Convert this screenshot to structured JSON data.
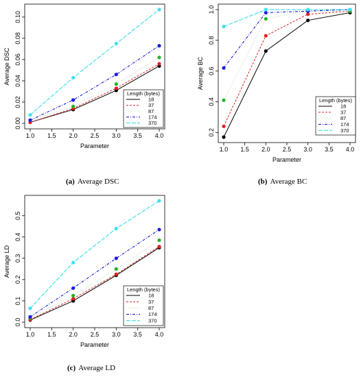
{
  "legend": {
    "title": "Length (bytes)",
    "series_names": [
      "18",
      "37",
      "87",
      "174",
      "370"
    ],
    "line_colors": [
      "#000000",
      "#e02020",
      "#bfe0b0",
      "#0000d0",
      "#20d8e8"
    ],
    "point_colors": [
      "#000000",
      "#e02020",
      "#22b422",
      "#1c1ce0",
      "#40e0f0"
    ],
    "dash_styles": [
      "none",
      "3,2",
      "1,1.6",
      "4,2,1,2",
      "6,2"
    ]
  },
  "chart_data": [
    {
      "type": "line",
      "caption_label": "(a)",
      "caption_text": "Average DSC",
      "xlabel": "Parameter",
      "ylabel": "Average DSC",
      "xlim": [
        1.0,
        4.0
      ],
      "ylim": [
        0.0,
        0.107
      ],
      "xticks": [
        "1.0",
        "1.5",
        "2.0",
        "2.5",
        "3.0",
        "3.5",
        "4.0"
      ],
      "yticks": [
        "0.00",
        "0.02",
        "0.04",
        "0.06",
        "0.08",
        "0.10"
      ],
      "legend_position": "bottom-right",
      "grid": false,
      "x": [
        1,
        2,
        3,
        4
      ],
      "series": [
        {
          "name": "18",
          "values": [
            0.001,
            0.013,
            0.031,
            0.054
          ]
        },
        {
          "name": "37",
          "values": [
            0.001,
            0.014,
            0.033,
            0.056
          ]
        },
        {
          "name": "87",
          "values": [
            0.003,
            0.016,
            0.037,
            0.062
          ]
        },
        {
          "name": "174",
          "values": [
            0.003,
            0.022,
            0.046,
            0.073
          ]
        },
        {
          "name": "370",
          "values": [
            0.008,
            0.043,
            0.075,
            0.107
          ]
        }
      ]
    },
    {
      "type": "line",
      "caption_label": "(b)",
      "caption_text": "Average BC",
      "xlabel": "Parameter",
      "ylabel": "Average BC",
      "xlim": [
        1.0,
        4.0
      ],
      "ylim": [
        0.17,
        1.0
      ],
      "xticks": [
        "1.0",
        "1.5",
        "2.0",
        "2.5",
        "3.0",
        "3.5",
        "4.0"
      ],
      "yticks": [
        "0.2",
        "0.4",
        "0.6",
        "0.8",
        "1.0"
      ],
      "legend_position": "bottom-right",
      "grid": false,
      "x": [
        1,
        2,
        3,
        4
      ],
      "series": [
        {
          "name": "18",
          "values": [
            0.17,
            0.73,
            0.93,
            0.98
          ]
        },
        {
          "name": "37",
          "values": [
            0.24,
            0.83,
            0.97,
            0.99
          ]
        },
        {
          "name": "87",
          "values": [
            0.41,
            0.94,
            0.99,
            0.99
          ]
        },
        {
          "name": "174",
          "values": [
            0.62,
            0.98,
            0.99,
            1.0
          ]
        },
        {
          "name": "370",
          "values": [
            0.89,
            1.0,
            1.0,
            1.0
          ]
        }
      ]
    },
    {
      "type": "line",
      "caption_label": "(c)",
      "caption_text": "Average LD",
      "xlabel": "Parameter",
      "ylabel": "Average LD",
      "xlim": [
        1.0,
        4.0
      ],
      "ylim": [
        0.0,
        0.57
      ],
      "xticks": [
        "1.0",
        "1.5",
        "2.0",
        "2.5",
        "3.0",
        "3.5",
        "4.0"
      ],
      "yticks": [
        "0.0",
        "0.1",
        "0.2",
        "0.3",
        "0.4",
        "0.5"
      ],
      "legend_position": "bottom-right",
      "grid": false,
      "x": [
        1,
        2,
        3,
        4
      ],
      "series": [
        {
          "name": "18",
          "values": [
            0.01,
            0.1,
            0.22,
            0.35
          ]
        },
        {
          "name": "37",
          "values": [
            0.012,
            0.11,
            0.225,
            0.355
          ]
        },
        {
          "name": "87",
          "values": [
            0.02,
            0.125,
            0.25,
            0.385
          ]
        },
        {
          "name": "174",
          "values": [
            0.025,
            0.16,
            0.3,
            0.435
          ]
        },
        {
          "name": "370",
          "values": [
            0.065,
            0.28,
            0.44,
            0.57
          ]
        }
      ]
    }
  ]
}
